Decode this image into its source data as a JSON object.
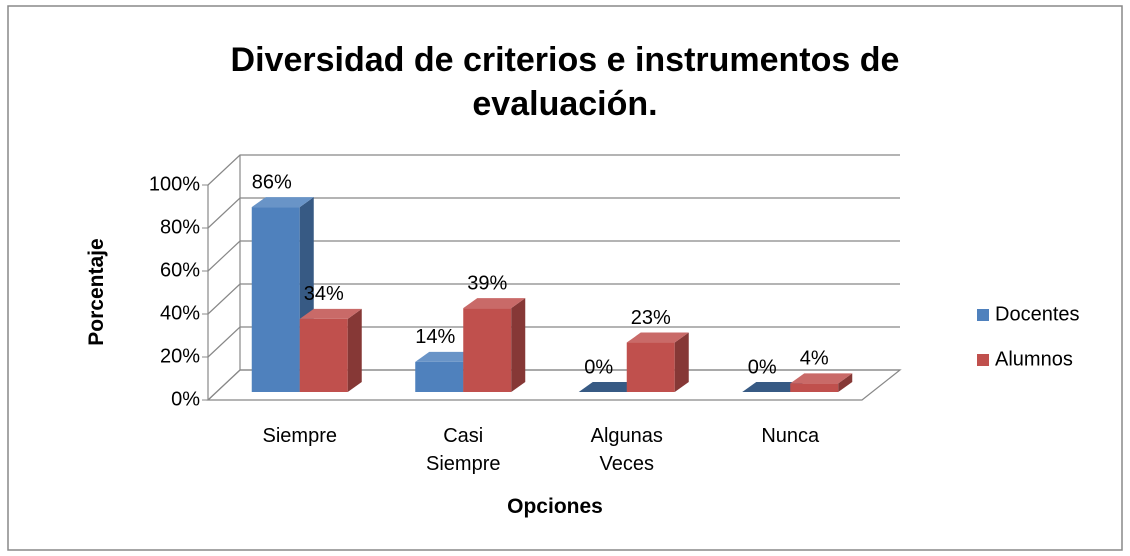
{
  "chart_data": {
    "type": "bar3d",
    "title": "Diversidad de criterios e instrumentos de evaluación.",
    "x_label": "Opciones",
    "y_label": "Porcentaje",
    "categories": [
      "Siempre",
      "Casi Siempre",
      "Algunas Veces",
      "Nunca"
    ],
    "series": [
      {
        "name": "Docentes",
        "color": "#4f81bd",
        "values": [
          86,
          14,
          0,
          0
        ],
        "value_labels": [
          "86%",
          "14%",
          "0%",
          "0%"
        ]
      },
      {
        "name": "Alumnos",
        "color": "#c0504d",
        "values": [
          34,
          39,
          23,
          4
        ],
        "value_labels": [
          "34%",
          "39%",
          "23%",
          "4%"
        ]
      }
    ],
    "ylim": [
      0,
      100
    ],
    "yticks": [
      {
        "value": 0,
        "label": "0%"
      },
      {
        "value": 20,
        "label": "20%"
      },
      {
        "value": 40,
        "label": "40%"
      },
      {
        "value": 60,
        "label": "60%"
      },
      {
        "value": 80,
        "label": "80%"
      },
      {
        "value": 100,
        "label": "100%"
      }
    ],
    "grid": true,
    "legend": "right"
  }
}
